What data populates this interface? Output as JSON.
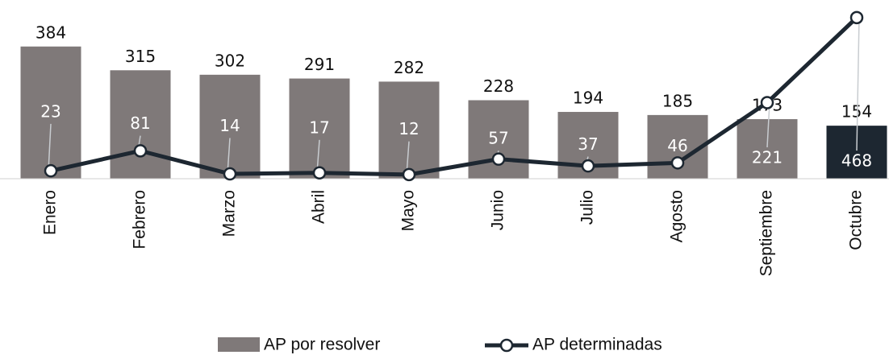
{
  "chart_data": {
    "type": "bar_line",
    "categories": [
      "Enero",
      "Febrero",
      "Marzo",
      "Abril",
      "Mayo",
      "Junio",
      "Julio",
      "Agosto",
      "Septiembre",
      "Octubre"
    ],
    "series": [
      {
        "name": "AP por resolver",
        "type": "bar",
        "color": "#7f7979",
        "colors": [
          "#7f7979",
          "#7f7979",
          "#7f7979",
          "#7f7979",
          "#7f7979",
          "#7f7979",
          "#7f7979",
          "#7f7979",
          "#7f7979",
          "#1d2731"
        ],
        "values": [
          384,
          315,
          302,
          291,
          282,
          228,
          194,
          185,
          173,
          154
        ]
      },
      {
        "name": "AP determinadas",
        "type": "line",
        "color": "#1d2731",
        "values": [
          23,
          81,
          14,
          17,
          12,
          57,
          37,
          46,
          221,
          468
        ]
      }
    ],
    "ylim": [
      0,
      470
    ]
  }
}
